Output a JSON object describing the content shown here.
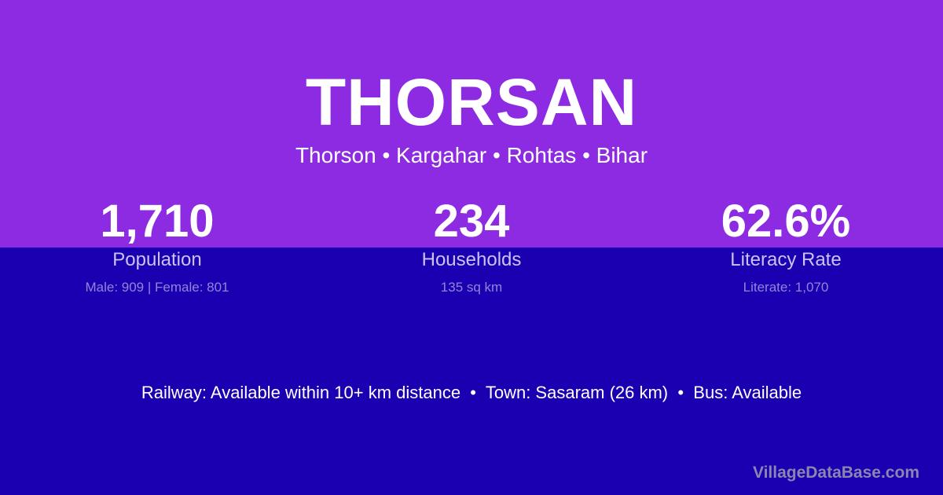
{
  "title": "THORSAN",
  "subtitle": "Thorson • Kargahar • Rohtas • Bihar",
  "stats": [
    {
      "value": "1,710",
      "label": "Population",
      "sub": "Male: 909 | Female: 801"
    },
    {
      "value": "234",
      "label": "Households",
      "sub": "135 sq km"
    },
    {
      "value": "62.6%",
      "label": "Literacy Rate",
      "sub": "Literate: 1,070"
    }
  ],
  "info": "Railway: Available within 10+ km distance  •  Town: Sasaram (26 km)  •  Bus: Available",
  "brand": "VillageDataBase.com",
  "colors": {
    "top": "#8c2be2",
    "bottom": "#1a00b0"
  }
}
